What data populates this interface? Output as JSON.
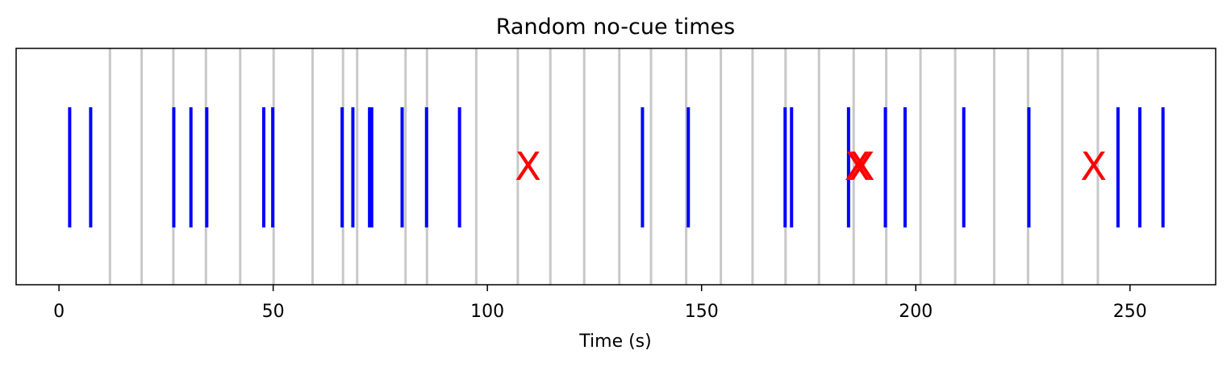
{
  "chart_data": {
    "type": "event-raster",
    "title": "Random no-cue times",
    "xlabel": "Time (s)",
    "xlim": [
      -10,
      270
    ],
    "xticks": [
      0,
      50,
      100,
      150,
      200,
      250
    ],
    "grid": "vertical gray lines at reference times",
    "colors": {
      "events": "#0000ff",
      "reference_lines": "#c8c8c8",
      "markers": "#ff0000"
    },
    "reference_times": [
      11.9,
      19.3,
      26.7,
      34.3,
      42.3,
      50.1,
      59.2,
      66.3,
      69.6,
      80.9,
      85.9,
      97.4,
      107.1,
      114.7,
      122.6,
      130.8,
      138.2,
      146.4,
      154.5,
      161.9,
      169.6,
      177.4,
      185.5,
      193.1,
      201.1,
      209.2,
      218.3,
      226.2,
      234.2,
      242.5
    ],
    "event_times": [
      2.5,
      7.4,
      26.8,
      30.8,
      34.5,
      47.8,
      49.9,
      66.1,
      68.6,
      72.5,
      73.0,
      80.1,
      85.8,
      93.5,
      136.2,
      146.9,
      169.5,
      171.0,
      184.3,
      192.9,
      197.5,
      211.2,
      226.4,
      247.2,
      252.3,
      257.7
    ],
    "missed_markers": [
      {
        "time": 109.5,
        "label": "X"
      },
      {
        "time": 186.4,
        "label": "X"
      },
      {
        "time": 187.4,
        "label": "X"
      },
      {
        "time": 241.5,
        "label": "X"
      }
    ]
  }
}
